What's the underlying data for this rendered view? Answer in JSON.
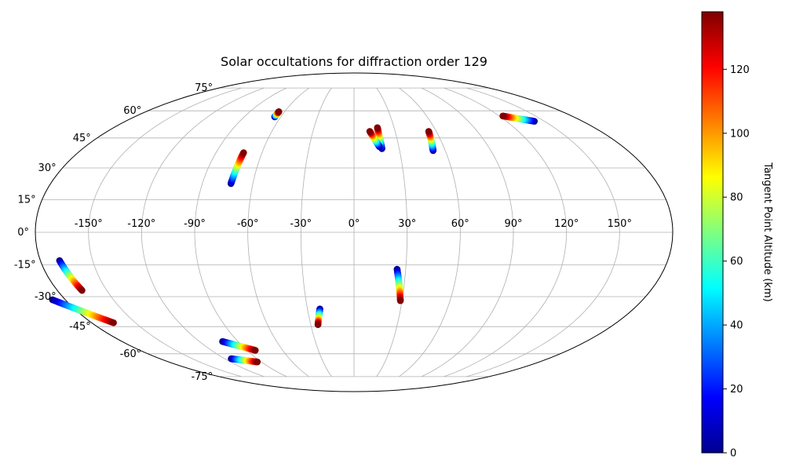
{
  "chart_data": {
    "type": "scatter",
    "projection": "mollweide",
    "title": "Solar occultations for diffraction order 129",
    "longitude_tick_labels": [
      {
        "lon": -150,
        "text": "-150°"
      },
      {
        "lon": -120,
        "text": "-120°"
      },
      {
        "lon": -90,
        "text": "-90°"
      },
      {
        "lon": -60,
        "text": "-60°"
      },
      {
        "lon": -30,
        "text": "-30°"
      },
      {
        "lon": 0,
        "text": "0°"
      },
      {
        "lon": 30,
        "text": "30°"
      },
      {
        "lon": 60,
        "text": "60°"
      },
      {
        "lon": 90,
        "text": "90°"
      },
      {
        "lon": 120,
        "text": "120°"
      },
      {
        "lon": 150,
        "text": "150°"
      }
    ],
    "latitude_tick_labels": [
      {
        "lat": 75,
        "text": "75°"
      },
      {
        "lat": 60,
        "text": "60°"
      },
      {
        "lat": 45,
        "text": "45°"
      },
      {
        "lat": 30,
        "text": "30°"
      },
      {
        "lat": 15,
        "text": "15°"
      },
      {
        "lat": 0,
        "text": "0°"
      },
      {
        "lat": -15,
        "text": "-15°"
      },
      {
        "lat": -30,
        "text": "-30°"
      },
      {
        "lat": -45,
        "text": "-45°"
      },
      {
        "lat": -60,
        "text": "-60°"
      },
      {
        "lat": -75,
        "text": "-75°"
      }
    ],
    "grid": true,
    "colorbar": {
      "label": "Tangent Point Altitude (km)",
      "range": [
        0,
        138
      ],
      "ticks": [
        {
          "value": 0,
          "text": "0"
        },
        {
          "value": 20,
          "text": "20"
        },
        {
          "value": 40,
          "text": "40"
        },
        {
          "value": 60,
          "text": "60"
        },
        {
          "value": 80,
          "text": "80"
        },
        {
          "value": 100,
          "text": "100"
        },
        {
          "value": 120,
          "text": "120"
        }
      ],
      "colormap": "jet",
      "placement": "right"
    },
    "tracks": [
      {
        "lon_low": -65,
        "lat_low": 56.5,
        "lon_high": -65,
        "lat_high": 59.5
      },
      {
        "lon_low": -73,
        "lat_low": 22.5,
        "lon_high": -72,
        "lat_high": 37.5
      },
      {
        "lon_low": 18.5,
        "lat_low": 39.5,
        "lon_high": 17.5,
        "lat_high": 50.5
      },
      {
        "lon_low": 17,
        "lat_low": 40.5,
        "lon_high": 11.5,
        "lat_high": 48.5
      },
      {
        "lon_low": 52,
        "lat_low": 38.5,
        "lon_high": 54.5,
        "lat_high": 48.5
      },
      {
        "lon_low": 142,
        "lat_low": 54,
        "lon_high": 123,
        "lat_high": 57
      },
      {
        "lon_low": -169,
        "lat_low": -13,
        "lon_high": -165,
        "lat_high": -27
      },
      {
        "lon_low": -188,
        "lat_low": -31.5,
        "lon_high": -165,
        "lat_high": -43
      },
      {
        "lon_low": -22,
        "lat_low": -36,
        "lon_high": -25,
        "lat_high": -44
      },
      {
        "lon_low": 25,
        "lat_low": -17,
        "lon_high": 29,
        "lat_high": -32
      },
      {
        "lon_low": -102,
        "lat_low": -53,
        "lon_high": -83,
        "lat_high": -58
      },
      {
        "lon_low": -114,
        "lat_low": -63,
        "lon_high": -94,
        "lat_high": -65
      }
    ]
  }
}
